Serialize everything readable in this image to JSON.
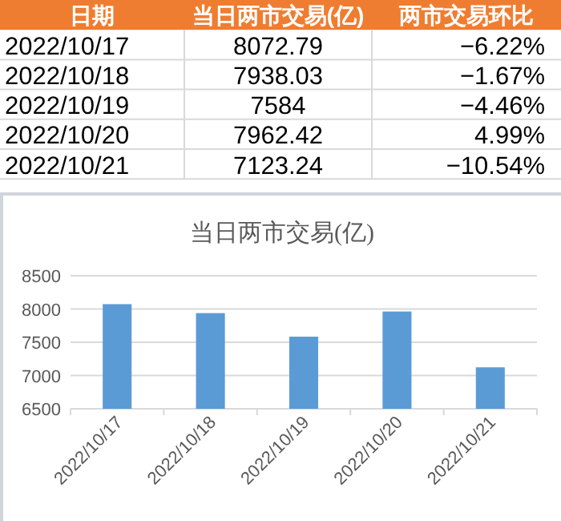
{
  "chart_data": {
    "type": "bar",
    "title": "当日两市交易(亿)",
    "categories": [
      "2022/10/17",
      "2022/10/18",
      "2022/10/19",
      "2022/10/20",
      "2022/10/21"
    ],
    "values": [
      8072.79,
      7938.03,
      7584,
      7962.42,
      7123.24
    ],
    "color": "#5b9bd5",
    "ylim": [
      6500,
      8500
    ],
    "yticks": [
      6500,
      7000,
      7500,
      8000,
      8500
    ],
    "grid": "y",
    "annotations": [
      "日期",
      "当日两市交易(亿)",
      "两市交易环比",
      "8072.79",
      "7938.03",
      "7584",
      "7962.42",
      "7123.24",
      "−6.22%",
      "−1.67%",
      "−4.46%",
      "4.99%",
      "−10.54%"
    ]
  }
}
